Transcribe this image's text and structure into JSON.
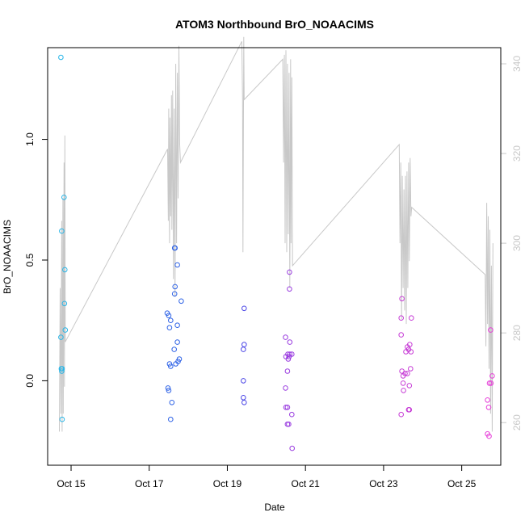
{
  "chart_data": {
    "type": "scatter",
    "title": "ATOM3 Northbound BrO_NOAACIMS",
    "xlabel": "Date",
    "ylabel": "BrO_NOAACIMS",
    "xlim": [
      14.4,
      26.0
    ],
    "ylim": [
      -0.35,
      1.38
    ],
    "y2lim": [
      250.5,
      343.6
    ],
    "xticks": [
      {
        "value": 15,
        "label": "Oct 15"
      },
      {
        "value": 17,
        "label": "Oct 17"
      },
      {
        "value": 19,
        "label": "Oct 19"
      },
      {
        "value": 21,
        "label": "Oct 21"
      },
      {
        "value": 23,
        "label": "Oct 23"
      },
      {
        "value": 25,
        "label": "Oct 25"
      }
    ],
    "yticks": [
      {
        "value": 0.0,
        "label": "0.0"
      },
      {
        "value": 0.5,
        "label": "0.5"
      },
      {
        "value": 1.0,
        "label": "1.0"
      }
    ],
    "y2ticks": [
      {
        "value": 260,
        "label": "260"
      },
      {
        "value": 280,
        "label": "280"
      },
      {
        "value": 300,
        "label": "300"
      },
      {
        "value": 320,
        "label": "320"
      },
      {
        "value": 340,
        "label": "340"
      }
    ],
    "grid": false,
    "points": [
      {
        "x": 14.74,
        "y": 1.34,
        "color": "#29b6e8"
      },
      {
        "x": 14.76,
        "y": 0.62,
        "color": "#29b6e8"
      },
      {
        "x": 14.82,
        "y": 0.76,
        "color": "#29b6e8"
      },
      {
        "x": 14.84,
        "y": 0.46,
        "color": "#29b6e8"
      },
      {
        "x": 14.83,
        "y": 0.32,
        "color": "#29b6e8"
      },
      {
        "x": 14.85,
        "y": 0.21,
        "color": "#29b6e8"
      },
      {
        "x": 14.74,
        "y": 0.18,
        "color": "#29b6e8"
      },
      {
        "x": 14.75,
        "y": 0.05,
        "color": "#29b6e8"
      },
      {
        "x": 14.76,
        "y": 0.04,
        "color": "#29b6e8"
      },
      {
        "x": 14.77,
        "y": 0.05,
        "color": "#29b6e8"
      },
      {
        "x": 14.77,
        "y": -0.16,
        "color": "#29b6e8"
      },
      {
        "x": 17.46,
        "y": 0.28,
        "color": "#2f63e6"
      },
      {
        "x": 17.5,
        "y": 0.27,
        "color": "#2f63e6"
      },
      {
        "x": 17.55,
        "y": 0.25,
        "color": "#2f63e6"
      },
      {
        "x": 17.52,
        "y": 0.22,
        "color": "#2f63e6"
      },
      {
        "x": 17.52,
        "y": 0.07,
        "color": "#2f63e6"
      },
      {
        "x": 17.55,
        "y": 0.06,
        "color": "#2f63e6"
      },
      {
        "x": 17.48,
        "y": -0.03,
        "color": "#2f63e6"
      },
      {
        "x": 17.5,
        "y": -0.04,
        "color": "#2f63e6"
      },
      {
        "x": 17.58,
        "y": -0.09,
        "color": "#2f63e6"
      },
      {
        "x": 17.55,
        "y": -0.16,
        "color": "#2f63e6"
      },
      {
        "x": 17.65,
        "y": 0.55,
        "color": "#2f63e6"
      },
      {
        "x": 17.66,
        "y": 0.55,
        "color": "#2f63e6"
      },
      {
        "x": 17.72,
        "y": 0.48,
        "color": "#2f63e6"
      },
      {
        "x": 17.66,
        "y": 0.39,
        "color": "#2f63e6"
      },
      {
        "x": 17.65,
        "y": 0.36,
        "color": "#2f63e6"
      },
      {
        "x": 17.82,
        "y": 0.33,
        "color": "#2f63e6"
      },
      {
        "x": 17.72,
        "y": 0.23,
        "color": "#2f63e6"
      },
      {
        "x": 17.72,
        "y": 0.16,
        "color": "#2f63e6"
      },
      {
        "x": 17.64,
        "y": 0.13,
        "color": "#2f63e6"
      },
      {
        "x": 17.77,
        "y": 0.09,
        "color": "#2f63e6"
      },
      {
        "x": 17.74,
        "y": 0.08,
        "color": "#2f63e6"
      },
      {
        "x": 17.68,
        "y": 0.07,
        "color": "#2f63e6"
      },
      {
        "x": 19.43,
        "y": 0.3,
        "color": "#4b46e6"
      },
      {
        "x": 19.43,
        "y": 0.15,
        "color": "#4b46e6"
      },
      {
        "x": 19.41,
        "y": 0.13,
        "color": "#4b46e6"
      },
      {
        "x": 19.41,
        "y": 0.0,
        "color": "#4b46e6"
      },
      {
        "x": 19.41,
        "y": -0.07,
        "color": "#4b46e6"
      },
      {
        "x": 19.43,
        "y": -0.09,
        "color": "#4b46e6"
      },
      {
        "x": 20.49,
        "y": 0.18,
        "color": "#9b3fe0"
      },
      {
        "x": 20.6,
        "y": 0.16,
        "color": "#9b3fe0"
      },
      {
        "x": 20.55,
        "y": 0.11,
        "color": "#9b3fe0"
      },
      {
        "x": 20.6,
        "y": 0.11,
        "color": "#9b3fe0"
      },
      {
        "x": 20.65,
        "y": 0.11,
        "color": "#9b3fe0"
      },
      {
        "x": 20.5,
        "y": 0.1,
        "color": "#9b3fe0"
      },
      {
        "x": 20.58,
        "y": 0.1,
        "color": "#9b3fe0"
      },
      {
        "x": 20.56,
        "y": 0.09,
        "color": "#9b3fe0"
      },
      {
        "x": 20.54,
        "y": 0.04,
        "color": "#9b3fe0"
      },
      {
        "x": 20.49,
        "y": -0.03,
        "color": "#9b3fe0"
      },
      {
        "x": 20.5,
        "y": -0.11,
        "color": "#9b3fe0"
      },
      {
        "x": 20.54,
        "y": -0.11,
        "color": "#9b3fe0"
      },
      {
        "x": 20.65,
        "y": -0.14,
        "color": "#9b3fe0"
      },
      {
        "x": 20.54,
        "y": -0.18,
        "color": "#9b3fe0"
      },
      {
        "x": 20.57,
        "y": -0.18,
        "color": "#9b3fe0"
      },
      {
        "x": 20.66,
        "y": -0.28,
        "color": "#9b3fe0"
      },
      {
        "x": 20.59,
        "y": 0.45,
        "color": "#9b3fe0"
      },
      {
        "x": 20.59,
        "y": 0.38,
        "color": "#9b3fe0"
      },
      {
        "x": 23.47,
        "y": 0.34,
        "color": "#c73ed6"
      },
      {
        "x": 23.45,
        "y": 0.26,
        "color": "#c73ed6"
      },
      {
        "x": 23.71,
        "y": 0.26,
        "color": "#c73ed6"
      },
      {
        "x": 23.45,
        "y": 0.19,
        "color": "#c73ed6"
      },
      {
        "x": 23.67,
        "y": 0.15,
        "color": "#c73ed6"
      },
      {
        "x": 23.61,
        "y": 0.14,
        "color": "#c73ed6"
      },
      {
        "x": 23.64,
        "y": 0.13,
        "color": "#c73ed6"
      },
      {
        "x": 23.57,
        "y": 0.12,
        "color": "#c73ed6"
      },
      {
        "x": 23.7,
        "y": 0.12,
        "color": "#c73ed6"
      },
      {
        "x": 23.47,
        "y": 0.04,
        "color": "#c73ed6"
      },
      {
        "x": 23.55,
        "y": 0.03,
        "color": "#c73ed6"
      },
      {
        "x": 23.61,
        "y": 0.03,
        "color": "#c73ed6"
      },
      {
        "x": 23.5,
        "y": 0.02,
        "color": "#c73ed6"
      },
      {
        "x": 23.69,
        "y": 0.05,
        "color": "#c73ed6"
      },
      {
        "x": 23.5,
        "y": -0.01,
        "color": "#c73ed6"
      },
      {
        "x": 23.66,
        "y": -0.02,
        "color": "#c73ed6"
      },
      {
        "x": 23.51,
        "y": -0.04,
        "color": "#c73ed6"
      },
      {
        "x": 23.66,
        "y": -0.12,
        "color": "#c73ed6"
      },
      {
        "x": 23.64,
        "y": -0.12,
        "color": "#c73ed6"
      },
      {
        "x": 23.45,
        "y": -0.14,
        "color": "#c73ed6"
      },
      {
        "x": 25.74,
        "y": 0.21,
        "color": "#e63cd8"
      },
      {
        "x": 25.78,
        "y": 0.02,
        "color": "#e63cd8"
      },
      {
        "x": 25.71,
        "y": -0.01,
        "color": "#e63cd8"
      },
      {
        "x": 25.75,
        "y": -0.01,
        "color": "#e63cd8"
      },
      {
        "x": 25.66,
        "y": -0.08,
        "color": "#e63cd8"
      },
      {
        "x": 25.69,
        "y": -0.11,
        "color": "#e63cd8"
      },
      {
        "x": 25.66,
        "y": -0.22,
        "color": "#e63cd8"
      },
      {
        "x": 25.7,
        "y": -0.23,
        "color": "#e63cd8"
      }
    ],
    "line_color": "#c8c8c8",
    "line_y2": [
      [
        14.7,
        258
      ],
      [
        14.72,
        290
      ],
      [
        14.74,
        262
      ],
      [
        14.76,
        305
      ],
      [
        14.77,
        258
      ],
      [
        14.79,
        310
      ],
      [
        14.8,
        262
      ],
      [
        14.82,
        318
      ],
      [
        14.83,
        268
      ],
      [
        14.84,
        324
      ],
      [
        14.85,
        278
      ],
      [
        17.47,
        321
      ],
      [
        17.49,
        305
      ],
      [
        17.5,
        330
      ],
      [
        17.52,
        300
      ],
      [
        17.53,
        328
      ],
      [
        17.55,
        306
      ],
      [
        17.57,
        333
      ],
      [
        17.58,
        303
      ],
      [
        17.6,
        334
      ],
      [
        17.62,
        292
      ],
      [
        17.64,
        330
      ],
      [
        17.66,
        288
      ],
      [
        17.68,
        340
      ],
      [
        17.7,
        300
      ],
      [
        17.72,
        338
      ],
      [
        17.74,
        310
      ],
      [
        17.76,
        344
      ],
      [
        17.78,
        322
      ],
      [
        17.8,
        318
      ],
      [
        19.37,
        345
      ],
      [
        19.39,
        332
      ],
      [
        19.4,
        298
      ],
      [
        19.42,
        346
      ],
      [
        19.43,
        332
      ],
      [
        20.42,
        341
      ],
      [
        20.44,
        318
      ],
      [
        20.46,
        342
      ],
      [
        20.48,
        300
      ],
      [
        20.5,
        343
      ],
      [
        20.52,
        298
      ],
      [
        20.54,
        340
      ],
      [
        20.56,
        302
      ],
      [
        20.58,
        338
      ],
      [
        20.6,
        290
      ],
      [
        20.62,
        341
      ],
      [
        20.63,
        300
      ],
      [
        20.65,
        337
      ],
      [
        20.67,
        295
      ],
      [
        23.4,
        322
      ],
      [
        23.42,
        300
      ],
      [
        23.44,
        318
      ],
      [
        23.46,
        283
      ],
      [
        23.48,
        315
      ],
      [
        23.5,
        290
      ],
      [
        23.52,
        312
      ],
      [
        23.54,
        285
      ],
      [
        23.56,
        315
      ],
      [
        23.58,
        282
      ],
      [
        23.6,
        316
      ],
      [
        23.62,
        290
      ],
      [
        23.64,
        318
      ],
      [
        23.66,
        296
      ],
      [
        23.68,
        319
      ],
      [
        23.7,
        306
      ],
      [
        23.72,
        308
      ],
      [
        25.6,
        293
      ],
      [
        25.62,
        277
      ],
      [
        25.64,
        309
      ],
      [
        25.66,
        282
      ],
      [
        25.68,
        306
      ],
      [
        25.7,
        272
      ],
      [
        25.72,
        303
      ],
      [
        25.74,
        262
      ],
      [
        25.76,
        295
      ],
      [
        25.78,
        258
      ],
      [
        25.8,
        300
      ]
    ]
  }
}
